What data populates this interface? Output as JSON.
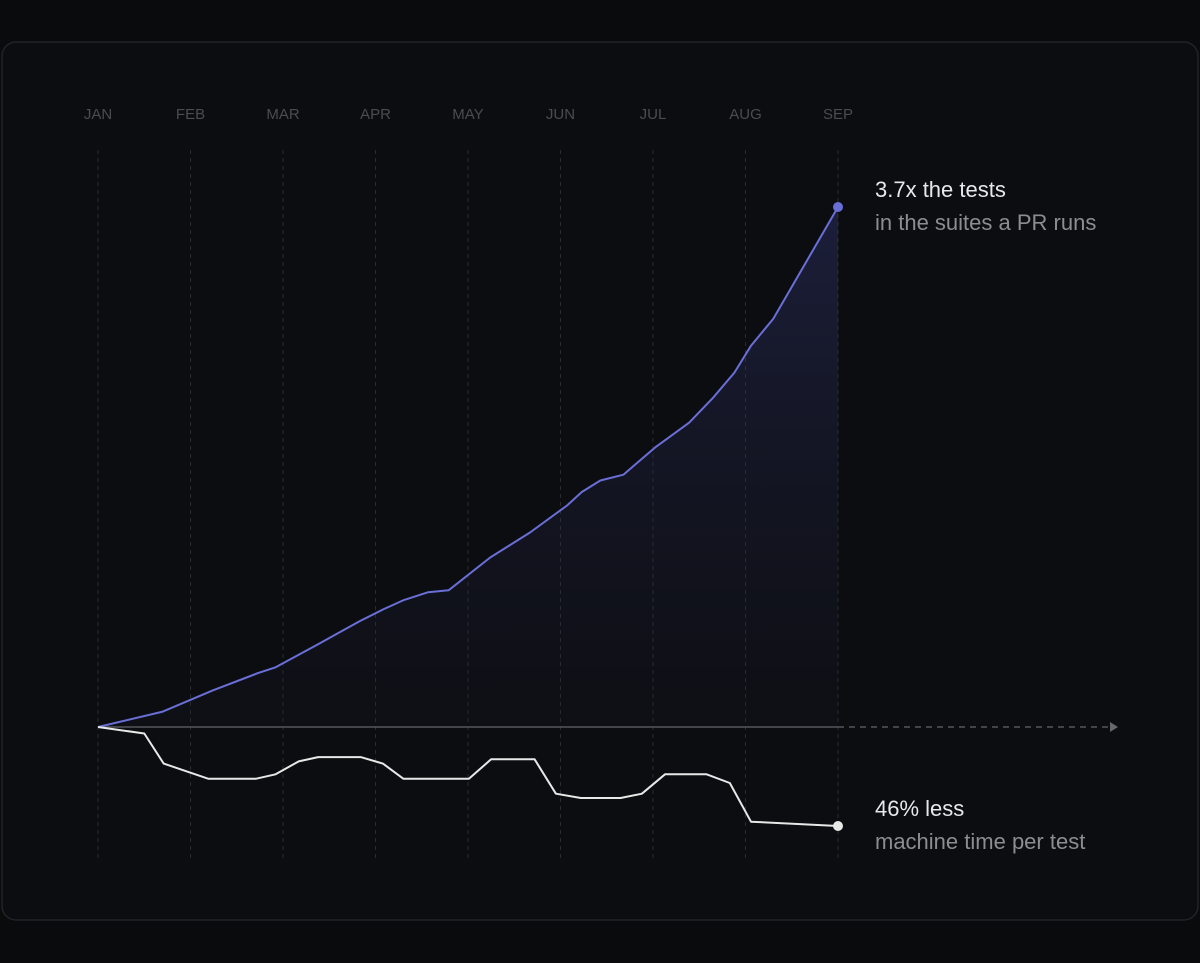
{
  "chart_data": {
    "type": "line",
    "categories": [
      "JAN",
      "FEB",
      "MAR",
      "APR",
      "MAY",
      "JUN",
      "JUL",
      "AUG",
      "SEP"
    ],
    "xlim": [
      0,
      8
    ],
    "ylim": [
      1,
      3.7
    ],
    "y2lim": [
      0.54,
      1
    ],
    "grid": true,
    "series": [
      {
        "color": "#6a6fd8",
        "x": [
          0,
          0.7,
          1.24,
          1.73,
          1.92,
          2.38,
          2.83,
          3.08,
          3.31,
          3.57,
          3.79,
          4.24,
          4.67,
          5.07,
          5.23,
          5.43,
          5.68,
          6.02,
          6.39,
          6.65,
          6.88,
          7.06,
          7.3,
          8
        ],
        "values": [
          1.0,
          1.08,
          1.19,
          1.28,
          1.31,
          1.43,
          1.55,
          1.61,
          1.66,
          1.7,
          1.71,
          1.88,
          2.01,
          2.15,
          2.22,
          2.28,
          2.31,
          2.45,
          2.58,
          2.71,
          2.84,
          2.98,
          3.12,
          3.7
        ],
        "annotation": {
          "title": "3.7x the tests",
          "text": "in the suites a PR runs"
        }
      },
      {
        "color": "#e8e8e8",
        "axis": "y2",
        "x": [
          0,
          0.5,
          0.71,
          1.19,
          1.71,
          1.92,
          2.17,
          2.38,
          2.84,
          3.08,
          3.3,
          4.01,
          4.25,
          4.72,
          4.95,
          5.22,
          5.65,
          5.88,
          6.13,
          6.58,
          6.83,
          7.06,
          8
        ],
        "values": [
          1.0,
          0.97,
          0.83,
          0.76,
          0.76,
          0.78,
          0.84,
          0.86,
          0.86,
          0.83,
          0.76,
          0.76,
          0.85,
          0.85,
          0.69,
          0.67,
          0.67,
          0.69,
          0.78,
          0.78,
          0.74,
          0.56,
          0.54
        ],
        "annotation": {
          "title": "46% less",
          "text": "machine time per test"
        }
      }
    ]
  }
}
